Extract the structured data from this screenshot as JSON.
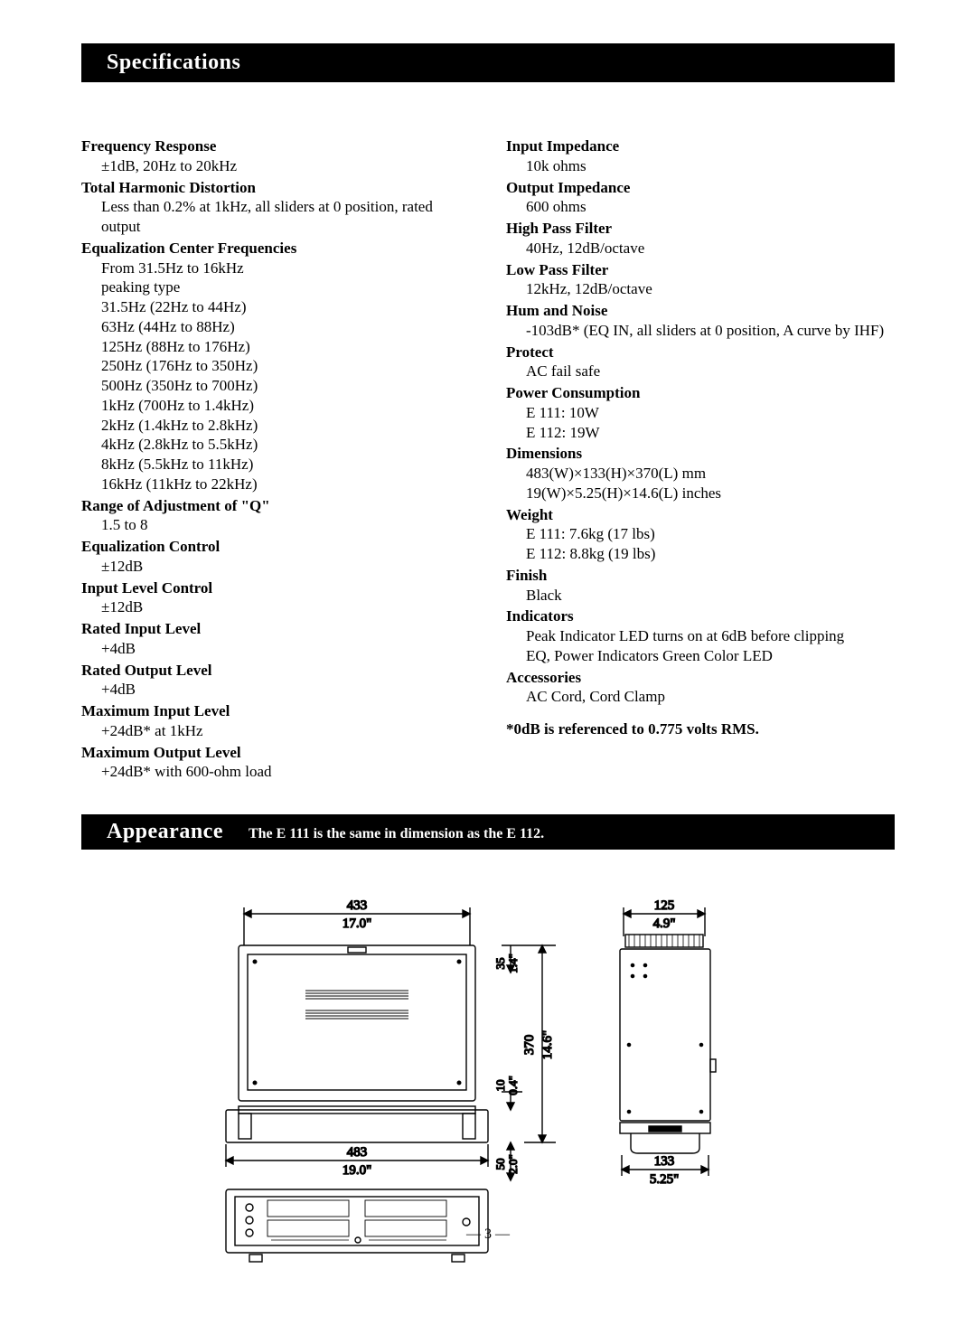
{
  "specifications": {
    "title": "Specifications",
    "left": [
      {
        "label": "Frequency Response",
        "values": [
          "±1dB, 20Hz to 20kHz"
        ]
      },
      {
        "label": "Total Harmonic Distortion",
        "values": [
          "Less than 0.2% at 1kHz, all sliders at 0 position, rated output"
        ]
      },
      {
        "label": "Equalization Center Frequencies",
        "values": [
          "From 31.5Hz to 16kHz",
          "peaking type",
          "31.5Hz (22Hz to 44Hz)",
          "63Hz (44Hz to 88Hz)",
          "125Hz (88Hz to 176Hz)",
          "250Hz (176Hz to 350Hz)",
          "500Hz (350Hz to 700Hz)",
          "1kHz (700Hz to 1.4kHz)",
          "2kHz (1.4kHz to 2.8kHz)",
          "4kHz (2.8kHz to 5.5kHz)",
          "8kHz (5.5kHz to 11kHz)",
          "16kHz (11kHz to 22kHz)"
        ]
      },
      {
        "label": "Range of Adjustment of \"Q\"",
        "values": [
          "1.5 to 8"
        ]
      },
      {
        "label": "Equalization Control",
        "values": [
          "±12dB"
        ]
      },
      {
        "label": "Input Level Control",
        "values": [
          "±12dB"
        ]
      },
      {
        "label": "Rated Input Level",
        "values": [
          "+4dB"
        ]
      },
      {
        "label": "Rated Output Level",
        "values": [
          "+4dB"
        ]
      },
      {
        "label": "Maximum Input Level",
        "values": [
          "+24dB* at 1kHz"
        ]
      },
      {
        "label": "Maximum Output Level",
        "values": [
          "+24dB* with 600-ohm load"
        ]
      }
    ],
    "right": [
      {
        "label": "Input Impedance",
        "values": [
          "10k ohms"
        ]
      },
      {
        "label": "Output Impedance",
        "values": [
          "600 ohms"
        ]
      },
      {
        "label": "High Pass Filter",
        "values": [
          "40Hz, 12dB/octave"
        ]
      },
      {
        "label": "Low Pass Filter",
        "values": [
          "12kHz, 12dB/octave"
        ]
      },
      {
        "label": "Hum and Noise",
        "values": [
          "-103dB* (EQ IN, all sliders at 0 position, A curve by IHF)"
        ]
      },
      {
        "label": "Protect",
        "values": [
          "AC fail safe"
        ]
      },
      {
        "label": "Power Consumption",
        "values": [
          "E 111: 10W",
          "E 112: 19W"
        ]
      },
      {
        "label": "Dimensions",
        "values": [
          "483(W)×133(H)×370(L) mm",
          "19(W)×5.25(H)×14.6(L) inches"
        ]
      },
      {
        "label": "Weight",
        "values": [
          "E 111: 7.6kg (17 lbs)",
          "E 112: 8.8kg (19 lbs)"
        ]
      },
      {
        "label": "Finish",
        "values": [
          "Black"
        ]
      },
      {
        "label": "Indicators",
        "values": [
          "Peak Indicator LED turns on at 6dB before clipping",
          "EQ, Power Indicators Green Color LED"
        ]
      },
      {
        "label": "Accessories",
        "values": [
          "AC Cord, Cord Clamp"
        ]
      }
    ],
    "footnote": "*0dB is referenced to 0.775 volts RMS."
  },
  "appearance": {
    "title": "Appearance",
    "subtitle": "The E 111 is the same in dimension as the E 112.",
    "dims": {
      "w_mm": "433",
      "w_in": "17.0\"",
      "w2_mm": "483",
      "w2_in": "19.0\"",
      "h35_mm": "35",
      "h35_in": "1.4\"",
      "h10_mm": "10",
      "h10_in": "0.4\"",
      "h50_mm": "50",
      "h50_in": "2.0\"",
      "d_mm": "370",
      "d_in": "14.6\"",
      "side_w_mm": "125",
      "side_w_in": "4.9\"",
      "side_h_mm": "133",
      "side_h_in": "5.25\""
    }
  },
  "page": "— 3 —",
  "colors": {
    "bg": "#ffffff",
    "bar": "#000000",
    "text": "#000000",
    "stroke": "#000000"
  }
}
